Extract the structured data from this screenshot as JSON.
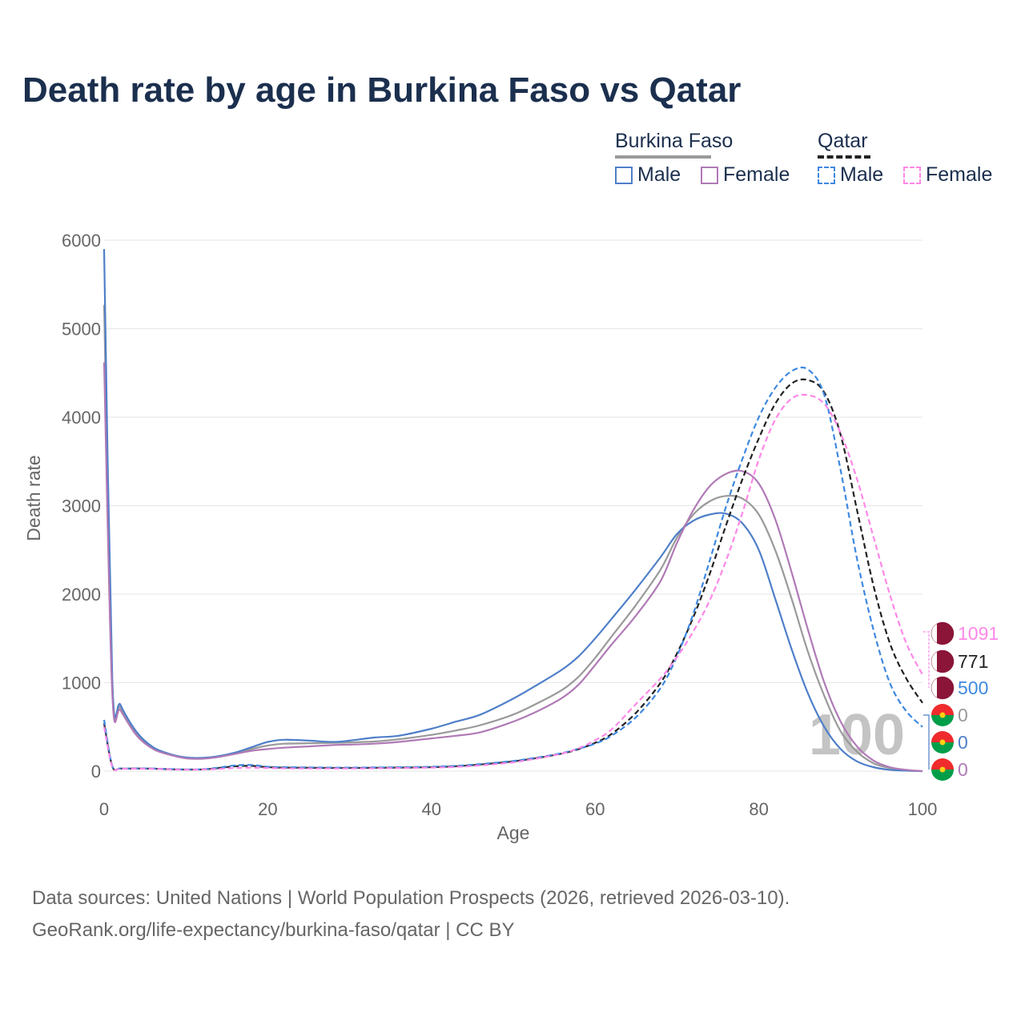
{
  "title": "Death rate by age in Burkina Faso vs Qatar",
  "legend": {
    "group1": "Burkina Faso",
    "group2": "Qatar",
    "male": "Male",
    "female": "Female"
  },
  "footer": {
    "line1": "Data sources: United Nations | World Population Prospects (2026, retrieved 2026-03-10).",
    "line2": "GeoRank.org/life-expectancy/burkina-faso/qatar | CC BY"
  },
  "colors": {
    "male": "#4f7fc9",
    "female": "#b07ab6",
    "total": "#9a9a9a",
    "qatar_male": "#3f88e0",
    "qatar_female": "#ff88e8",
    "qatar_total": "#222222",
    "grid": "#e6e6e6",
    "axis_text": "#666666"
  },
  "chart_data": {
    "type": "line",
    "xlabel": "Age",
    "ylabel": "Death rate",
    "xlim": [
      0,
      100
    ],
    "ylim": [
      0,
      6000
    ],
    "xticks": [
      "0",
      "20",
      "40",
      "60",
      "80",
      "100"
    ],
    "yticks": [
      "0",
      "1000",
      "2000",
      "3000",
      "4000",
      "5000",
      "6000"
    ],
    "year_watermark": "100",
    "x": [
      0,
      1,
      2,
      4,
      6,
      8,
      10,
      12,
      14,
      16,
      18,
      20,
      22,
      25,
      28,
      30,
      33,
      36,
      40,
      43,
      46,
      50,
      53,
      56,
      58,
      60,
      62,
      65,
      68,
      70,
      72,
      74,
      76,
      78,
      80,
      82,
      84,
      86,
      88,
      90,
      92,
      94,
      96,
      98,
      100
    ],
    "series": [
      {
        "name": "Burkina Faso Total",
        "country": "Burkina Faso",
        "sex": "Total",
        "style": "solid",
        "color_key": "total",
        "values": [
          5270,
          960,
          720,
          420,
          260,
          190,
          150,
          145,
          165,
          200,
          250,
          290,
          310,
          315,
          320,
          325,
          335,
          360,
          410,
          460,
          520,
          640,
          770,
          920,
          1070,
          1280,
          1520,
          1880,
          2280,
          2640,
          2900,
          3050,
          3110,
          3080,
          2900,
          2500,
          1950,
          1350,
          850,
          450,
          220,
          90,
          35,
          12,
          0
        ]
      },
      {
        "name": "Burkina Faso Male",
        "country": "Burkina Faso",
        "sex": "Male",
        "style": "solid",
        "color_key": "male",
        "values": [
          5900,
          1050,
          750,
          440,
          270,
          195,
          155,
          150,
          170,
          210,
          270,
          330,
          355,
          345,
          330,
          345,
          380,
          400,
          480,
          560,
          640,
          820,
          980,
          1150,
          1300,
          1500,
          1720,
          2060,
          2420,
          2680,
          2830,
          2900,
          2910,
          2800,
          2500,
          1950,
          1380,
          880,
          500,
          250,
          110,
          45,
          15,
          5,
          0
        ]
      },
      {
        "name": "Burkina Faso Female",
        "country": "Burkina Faso",
        "sex": "Female",
        "style": "solid",
        "color_key": "female",
        "values": [
          4620,
          880,
          690,
          400,
          250,
          185,
          145,
          140,
          160,
          195,
          230,
          250,
          265,
          280,
          295,
          300,
          310,
          330,
          370,
          400,
          440,
          560,
          680,
          830,
          980,
          1200,
          1430,
          1760,
          2150,
          2580,
          2950,
          3220,
          3360,
          3390,
          3250,
          2850,
          2250,
          1600,
          1000,
          560,
          280,
          120,
          45,
          15,
          0
        ]
      },
      {
        "name": "Qatar Total",
        "country": "Qatar",
        "sex": "Total",
        "style": "dashed",
        "color_key": "qatar_total",
        "values": [
          540,
          55,
          30,
          30,
          28,
          22,
          18,
          20,
          35,
          55,
          60,
          45,
          40,
          38,
          36,
          36,
          38,
          40,
          45,
          55,
          75,
          110,
          150,
          200,
          250,
          320,
          420,
          660,
          1000,
          1330,
          1740,
          2230,
          2780,
          3300,
          3760,
          4150,
          4380,
          4420,
          4280,
          3800,
          2950,
          2100,
          1450,
          1050,
          771
        ]
      },
      {
        "name": "Qatar Male",
        "country": "Qatar",
        "sex": "Male",
        "style": "dashed",
        "color_key": "qatar_male",
        "values": [
          580,
          60,
          32,
          32,
          30,
          24,
          20,
          22,
          40,
          65,
          70,
          50,
          45,
          42,
          40,
          40,
          42,
          44,
          50,
          60,
          80,
          115,
          155,
          205,
          255,
          310,
          400,
          610,
          940,
          1300,
          1780,
          2380,
          2990,
          3530,
          4000,
          4330,
          4520,
          4540,
          4250,
          3400,
          2400,
          1600,
          1000,
          680,
          500
        ]
      },
      {
        "name": "Qatar Female",
        "country": "Qatar",
        "sex": "Female",
        "style": "dashed",
        "color_key": "qatar_female",
        "values": [
          500,
          50,
          28,
          28,
          26,
          20,
          16,
          18,
          25,
          35,
          40,
          35,
          32,
          30,
          30,
          30,
          32,
          35,
          40,
          48,
          65,
          100,
          145,
          200,
          260,
          350,
          470,
          760,
          1050,
          1290,
          1580,
          1930,
          2380,
          2920,
          3520,
          3970,
          4210,
          4250,
          4150,
          3820,
          3300,
          2650,
          2000,
          1450,
          1091
        ]
      }
    ],
    "end_labels": [
      {
        "value": "1091",
        "country": "Qatar",
        "color_key": "qatar_female"
      },
      {
        "value": "771",
        "country": "Qatar",
        "color_key": "qatar_total"
      },
      {
        "value": "500",
        "country": "Qatar",
        "color_key": "qatar_male"
      },
      {
        "value": "0",
        "country": "Burkina Faso",
        "color_key": "total"
      },
      {
        "value": "0",
        "country": "Burkina Faso",
        "color_key": "male"
      },
      {
        "value": "0",
        "country": "Burkina Faso",
        "color_key": "female"
      }
    ]
  }
}
